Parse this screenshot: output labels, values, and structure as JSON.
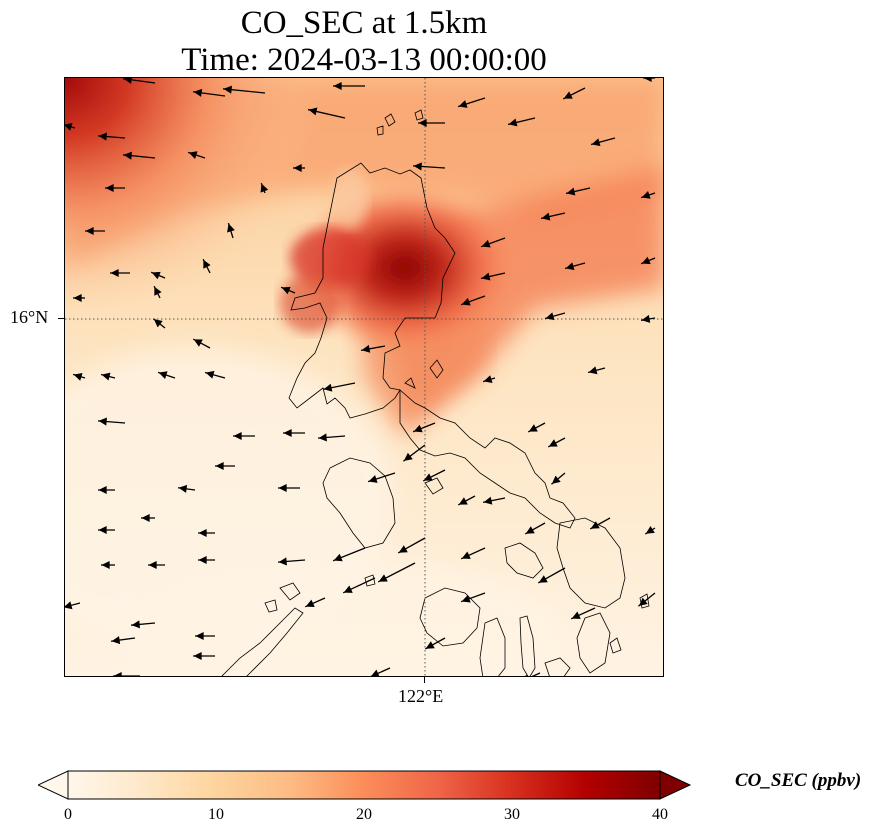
{
  "title": {
    "line1": "CO_SEC at 1.5km",
    "line2": "Time: 2024-03-13 00:00:00"
  },
  "map": {
    "lat_label": "16°N",
    "lon_label": "122°E",
    "gridline_style": "dotted",
    "field_variable": "CO_SEC",
    "wind_vectors": "black arrows, mostly westward/southwestward (northeasterly flow)",
    "coastlines": "northern Philippines (Luzon) outlined in thin black"
  },
  "colorbar": {
    "label": "CO_SEC (ppbv)",
    "ticks": [
      "0",
      "10",
      "20",
      "30",
      "40"
    ],
    "min": 0,
    "max": 40,
    "extend": "both",
    "colormap": "OrRd",
    "colors": [
      "#fff7ec",
      "#fee8c8",
      "#fdd49e",
      "#fdbb84",
      "#fc8d59",
      "#ef6548",
      "#d7301f",
      "#b30000",
      "#7f0000"
    ]
  }
}
